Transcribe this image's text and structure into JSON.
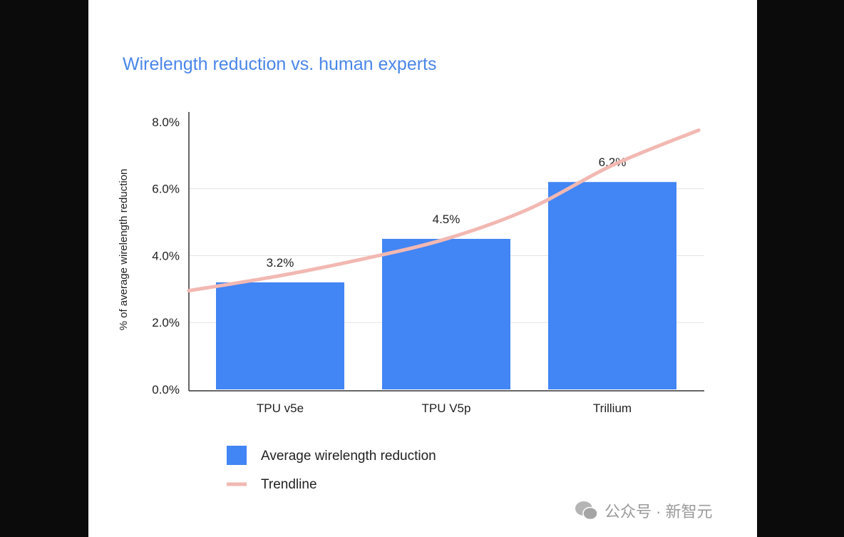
{
  "chart_data": {
    "type": "bar",
    "title": "Wirelength reduction vs. human experts",
    "ylabel": "% of average wirelength reduction",
    "xlabel": "",
    "ylim": [
      0,
      8
    ],
    "yticks": [
      "0.0%",
      "2.0%",
      "4.0%",
      "6.0%",
      "8.0%"
    ],
    "categories": [
      "TPU v5e",
      "TPU V5p",
      "Trillium"
    ],
    "series": [
      {
        "name": "Average wirelength reduction",
        "values": [
          3.2,
          4.5,
          6.2
        ],
        "labels": [
          "3.2%",
          "4.5%",
          "6.2%"
        ],
        "color": "#4285f4"
      }
    ],
    "trendline": {
      "name": "Trendline",
      "color": "#f2b8b2",
      "x": [
        -0.55,
        0,
        0.5,
        1,
        1.5,
        2,
        2.52
      ],
      "y": [
        2.95,
        3.4,
        3.9,
        4.5,
        5.4,
        6.7,
        7.75
      ]
    },
    "grid": true,
    "legend": "bottom-left"
  },
  "watermark": {
    "text": "公众号 · 新智元"
  }
}
